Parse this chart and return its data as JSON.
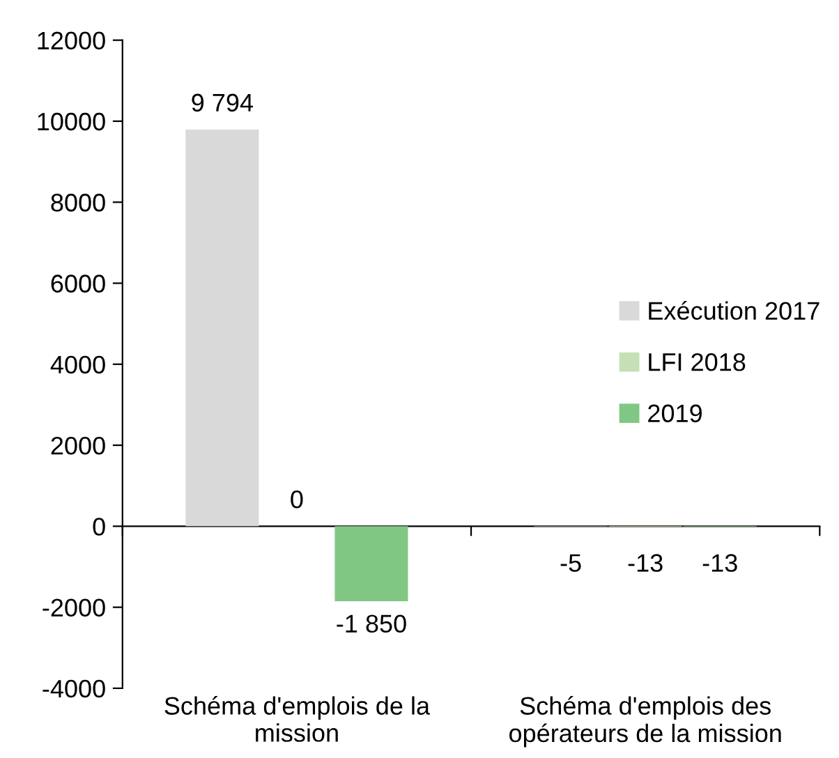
{
  "chart_data": {
    "type": "bar",
    "categories": [
      "Schéma d'emplois de la\nmission",
      "Schéma d'emplois des\nopérateurs de la mission"
    ],
    "series": [
      {
        "name": "Exécution 2017",
        "color": "#d9d9d9",
        "values": [
          9794,
          -5
        ],
        "value_labels": [
          "9 794",
          "-5"
        ]
      },
      {
        "name": "LFI 2018",
        "color": "#c5e0b4",
        "values": [
          0,
          -13
        ],
        "value_labels": [
          "0",
          "-13"
        ]
      },
      {
        "name": "2019",
        "color": "#81c784",
        "values": [
          -1850,
          -13
        ],
        "value_labels": [
          "-1 850",
          "-13"
        ]
      }
    ],
    "ylim": [
      -4000,
      12000
    ],
    "yticks": [
      -4000,
      -2000,
      0,
      2000,
      4000,
      6000,
      8000,
      10000,
      12000
    ],
    "legend": "right"
  }
}
